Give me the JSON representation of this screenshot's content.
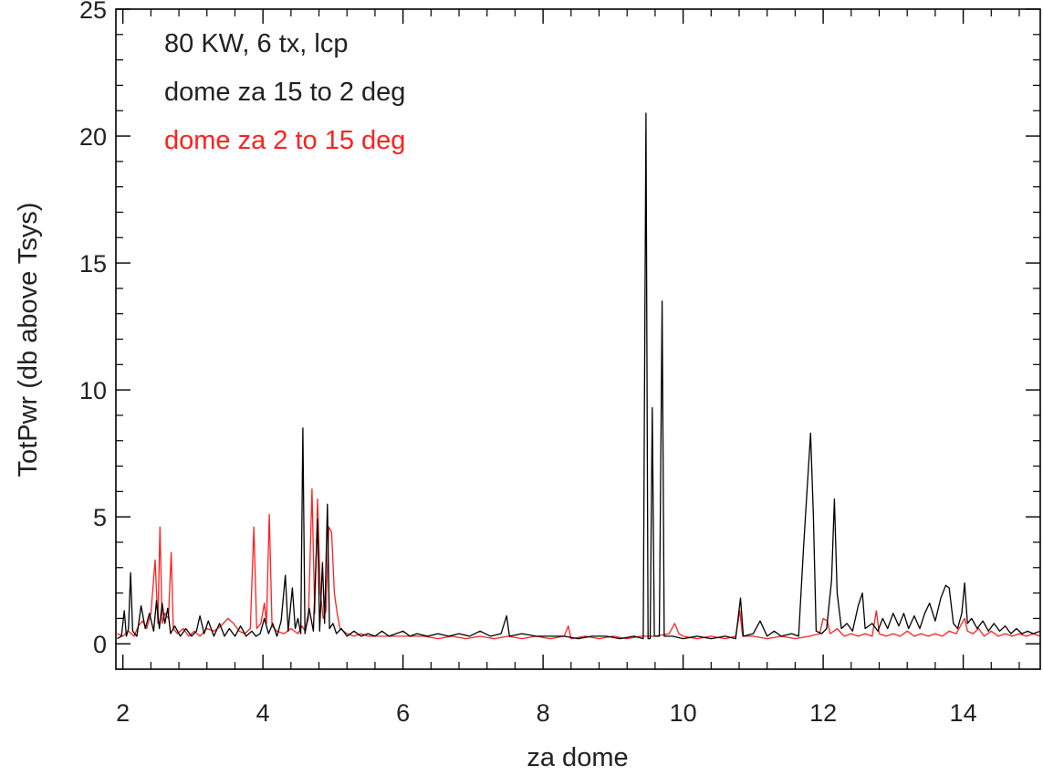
{
  "chart_data": {
    "type": "line",
    "title": "",
    "xlabel": "za dome",
    "ylabel": "TotPwr (db above Tsys)",
    "xlim": [
      1.9,
      15.1
    ],
    "ylim": [
      -1,
      25
    ],
    "xticks": [
      2,
      4,
      6,
      8,
      10,
      12,
      14
    ],
    "yticks": [
      0,
      5,
      10,
      15,
      20,
      25
    ],
    "x_minor_step": 0.4,
    "y_minor_step": 1,
    "grid": false,
    "legend_position": "top-left",
    "annotations": [
      {
        "text": "80 KW, 6 tx, lcp",
        "color": "#222222"
      },
      {
        "text": "dome za 15 to 2 deg",
        "color": "#222222"
      },
      {
        "text": "dome za 2  to 15 deg",
        "color": "#ff2020"
      }
    ],
    "series": [
      {
        "color": "#000000",
        "points": [
          [
            1.92,
            0.2
          ],
          [
            1.98,
            0.3
          ],
          [
            2.02,
            1.3
          ],
          [
            2.05,
            0.3
          ],
          [
            2.08,
            0.6
          ],
          [
            2.11,
            2.8
          ],
          [
            2.14,
            0.5
          ],
          [
            2.2,
            0.3
          ],
          [
            2.26,
            1.5
          ],
          [
            2.32,
            0.6
          ],
          [
            2.38,
            1.2
          ],
          [
            2.44,
            0.5
          ],
          [
            2.48,
            1.7
          ],
          [
            2.52,
            0.6
          ],
          [
            2.56,
            1.6
          ],
          [
            2.6,
            0.8
          ],
          [
            2.64,
            1.4
          ],
          [
            2.68,
            0.4
          ],
          [
            2.74,
            0.7
          ],
          [
            2.82,
            0.3
          ],
          [
            2.9,
            0.6
          ],
          [
            2.98,
            0.3
          ],
          [
            3.05,
            0.5
          ],
          [
            3.1,
            1.1
          ],
          [
            3.16,
            0.4
          ],
          [
            3.22,
            0.9
          ],
          [
            3.3,
            0.3
          ],
          [
            3.38,
            0.8
          ],
          [
            3.45,
            0.3
          ],
          [
            3.52,
            0.6
          ],
          [
            3.6,
            0.3
          ],
          [
            3.68,
            0.7
          ],
          [
            3.76,
            0.3
          ],
          [
            3.84,
            0.5
          ],
          [
            3.9,
            0.3
          ],
          [
            3.96,
            0.4
          ],
          [
            4.02,
            1.0
          ],
          [
            4.08,
            0.4
          ],
          [
            4.14,
            0.8
          ],
          [
            4.2,
            0.3
          ],
          [
            4.26,
            0.9
          ],
          [
            4.32,
            2.7
          ],
          [
            4.36,
            0.5
          ],
          [
            4.42,
            2.2
          ],
          [
            4.46,
            0.6
          ],
          [
            4.5,
            1.0
          ],
          [
            4.54,
            0.4
          ],
          [
            4.57,
            8.5
          ],
          [
            4.6,
            0.4
          ],
          [
            4.66,
            1.4
          ],
          [
            4.72,
            0.5
          ],
          [
            4.78,
            4.9
          ],
          [
            4.81,
            0.5
          ],
          [
            4.85,
            3.2
          ],
          [
            4.88,
            0.8
          ],
          [
            4.92,
            5.5
          ],
          [
            4.95,
            0.6
          ],
          [
            5.0,
            0.8
          ],
          [
            5.05,
            0.4
          ],
          [
            5.12,
            0.6
          ],
          [
            5.2,
            0.3
          ],
          [
            5.3,
            0.5
          ],
          [
            5.4,
            0.3
          ],
          [
            5.5,
            0.4
          ],
          [
            5.6,
            0.3
          ],
          [
            5.7,
            0.5
          ],
          [
            5.8,
            0.3
          ],
          [
            5.9,
            0.4
          ],
          [
            6.0,
            0.5
          ],
          [
            6.1,
            0.3
          ],
          [
            6.2,
            0.4
          ],
          [
            6.35,
            0.3
          ],
          [
            6.5,
            0.4
          ],
          [
            6.65,
            0.3
          ],
          [
            6.8,
            0.4
          ],
          [
            6.95,
            0.3
          ],
          [
            7.1,
            0.5
          ],
          [
            7.25,
            0.3
          ],
          [
            7.4,
            0.4
          ],
          [
            7.48,
            1.1
          ],
          [
            7.52,
            0.3
          ],
          [
            7.7,
            0.4
          ],
          [
            7.9,
            0.3
          ],
          [
            8.1,
            0.3
          ],
          [
            8.3,
            0.3
          ],
          [
            8.5,
            0.2
          ],
          [
            8.7,
            0.3
          ],
          [
            8.9,
            0.3
          ],
          [
            9.1,
            0.2
          ],
          [
            9.3,
            0.3
          ],
          [
            9.43,
            0.2
          ],
          [
            9.47,
            20.9
          ],
          [
            9.5,
            0.2
          ],
          [
            9.53,
            0.2
          ],
          [
            9.56,
            9.3
          ],
          [
            9.59,
            0.3
          ],
          [
            9.66,
            0.3
          ],
          [
            9.7,
            13.5
          ],
          [
            9.73,
            0.3
          ],
          [
            9.85,
            0.3
          ],
          [
            10.0,
            0.2
          ],
          [
            10.2,
            0.3
          ],
          [
            10.4,
            0.2
          ],
          [
            10.6,
            0.3
          ],
          [
            10.75,
            0.2
          ],
          [
            10.82,
            1.8
          ],
          [
            10.86,
            0.3
          ],
          [
            11.0,
            0.4
          ],
          [
            11.1,
            0.9
          ],
          [
            11.2,
            0.3
          ],
          [
            11.3,
            0.5
          ],
          [
            11.4,
            0.3
          ],
          [
            11.55,
            0.4
          ],
          [
            11.65,
            0.3
          ],
          [
            11.72,
            3.8
          ],
          [
            11.78,
            6.5
          ],
          [
            11.82,
            8.3
          ],
          [
            11.86,
            5.0
          ],
          [
            11.9,
            0.5
          ],
          [
            11.98,
            0.4
          ],
          [
            12.05,
            0.6
          ],
          [
            12.12,
            2.5
          ],
          [
            12.16,
            5.7
          ],
          [
            12.2,
            2.0
          ],
          [
            12.26,
            0.6
          ],
          [
            12.34,
            0.8
          ],
          [
            12.42,
            0.5
          ],
          [
            12.5,
            1.5
          ],
          [
            12.56,
            2.0
          ],
          [
            12.6,
            0.6
          ],
          [
            12.7,
            0.8
          ],
          [
            12.78,
            0.5
          ],
          [
            12.85,
            1.0
          ],
          [
            12.92,
            0.6
          ],
          [
            13.0,
            1.2
          ],
          [
            13.08,
            0.7
          ],
          [
            13.15,
            1.2
          ],
          [
            13.22,
            0.6
          ],
          [
            13.3,
            1.1
          ],
          [
            13.38,
            0.6
          ],
          [
            13.45,
            1.2
          ],
          [
            13.52,
            1.6
          ],
          [
            13.6,
            0.9
          ],
          [
            13.68,
            1.8
          ],
          [
            13.75,
            2.3
          ],
          [
            13.8,
            2.2
          ],
          [
            13.86,
            0.8
          ],
          [
            13.92,
            0.6
          ],
          [
            13.98,
            1.2
          ],
          [
            14.02,
            2.4
          ],
          [
            14.06,
            0.8
          ],
          [
            14.12,
            1.0
          ],
          [
            14.2,
            0.6
          ],
          [
            14.28,
            0.9
          ],
          [
            14.36,
            0.5
          ],
          [
            14.44,
            0.8
          ],
          [
            14.52,
            0.5
          ],
          [
            14.6,
            0.7
          ],
          [
            14.68,
            0.4
          ],
          [
            14.76,
            0.6
          ],
          [
            14.84,
            0.4
          ],
          [
            14.92,
            0.5
          ],
          [
            15.0,
            0.4
          ],
          [
            15.1,
            0.5
          ]
        ]
      },
      {
        "color": "#ff2020",
        "points": [
          [
            1.92,
            0.4
          ],
          [
            2.0,
            0.3
          ],
          [
            2.08,
            0.5
          ],
          [
            2.16,
            0.3
          ],
          [
            2.22,
            0.7
          ],
          [
            2.28,
            0.9
          ],
          [
            2.34,
            0.6
          ],
          [
            2.4,
            1.2
          ],
          [
            2.46,
            3.3
          ],
          [
            2.5,
            0.8
          ],
          [
            2.53,
            4.6
          ],
          [
            2.56,
            0.8
          ],
          [
            2.6,
            1.2
          ],
          [
            2.65,
            1.0
          ],
          [
            2.69,
            3.6
          ],
          [
            2.72,
            0.6
          ],
          [
            2.78,
            0.4
          ],
          [
            2.86,
            0.6
          ],
          [
            2.94,
            0.3
          ],
          [
            3.02,
            0.5
          ],
          [
            3.1,
            0.3
          ],
          [
            3.2,
            0.6
          ],
          [
            3.3,
            0.5
          ],
          [
            3.4,
            0.7
          ],
          [
            3.5,
            1.0
          ],
          [
            3.58,
            0.8
          ],
          [
            3.66,
            0.5
          ],
          [
            3.74,
            0.4
          ],
          [
            3.82,
            0.6
          ],
          [
            3.87,
            4.6
          ],
          [
            3.91,
            0.6
          ],
          [
            3.97,
            0.8
          ],
          [
            4.02,
            1.6
          ],
          [
            4.05,
            0.8
          ],
          [
            4.09,
            5.1
          ],
          [
            4.13,
            0.7
          ],
          [
            4.2,
            0.5
          ],
          [
            4.3,
            0.4
          ],
          [
            4.4,
            0.6
          ],
          [
            4.5,
            0.4
          ],
          [
            4.56,
            0.7
          ],
          [
            4.6,
            0.5
          ],
          [
            4.65,
            1.0
          ],
          [
            4.7,
            6.1
          ],
          [
            4.74,
            1.2
          ],
          [
            4.78,
            5.7
          ],
          [
            4.82,
            2.0
          ],
          [
            4.86,
            1.0
          ],
          [
            4.9,
            1.3
          ],
          [
            4.94,
            4.6
          ],
          [
            4.98,
            4.4
          ],
          [
            5.02,
            2.0
          ],
          [
            5.06,
            1.2
          ],
          [
            5.1,
            0.6
          ],
          [
            5.2,
            0.4
          ],
          [
            5.3,
            0.3
          ],
          [
            5.4,
            0.4
          ],
          [
            5.5,
            0.3
          ],
          [
            5.7,
            0.3
          ],
          [
            5.9,
            0.3
          ],
          [
            6.1,
            0.3
          ],
          [
            6.3,
            0.3
          ],
          [
            6.5,
            0.2
          ],
          [
            6.7,
            0.3
          ],
          [
            6.9,
            0.2
          ],
          [
            7.1,
            0.3
          ],
          [
            7.3,
            0.2
          ],
          [
            7.5,
            0.3
          ],
          [
            7.7,
            0.2
          ],
          [
            7.9,
            0.3
          ],
          [
            8.1,
            0.2
          ],
          [
            8.3,
            0.3
          ],
          [
            8.36,
            0.7
          ],
          [
            8.4,
            0.2
          ],
          [
            8.6,
            0.3
          ],
          [
            8.8,
            0.2
          ],
          [
            9.0,
            0.3
          ],
          [
            9.2,
            0.2
          ],
          [
            9.4,
            0.3
          ],
          [
            9.6,
            0.3
          ],
          [
            9.8,
            0.4
          ],
          [
            9.88,
            0.8
          ],
          [
            9.94,
            0.4
          ],
          [
            10.0,
            0.3
          ],
          [
            10.2,
            0.2
          ],
          [
            10.4,
            0.3
          ],
          [
            10.6,
            0.2
          ],
          [
            10.75,
            0.3
          ],
          [
            10.81,
            1.3
          ],
          [
            10.85,
            0.3
          ],
          [
            11.0,
            0.3
          ],
          [
            11.2,
            0.2
          ],
          [
            11.4,
            0.3
          ],
          [
            11.6,
            0.2
          ],
          [
            11.8,
            0.3
          ],
          [
            11.95,
            0.4
          ],
          [
            12.0,
            1.0
          ],
          [
            12.06,
            0.9
          ],
          [
            12.1,
            0.4
          ],
          [
            12.2,
            0.6
          ],
          [
            12.3,
            0.3
          ],
          [
            12.4,
            0.4
          ],
          [
            12.5,
            0.3
          ],
          [
            12.6,
            0.4
          ],
          [
            12.7,
            0.3
          ],
          [
            12.76,
            1.3
          ],
          [
            12.8,
            0.4
          ],
          [
            12.9,
            0.3
          ],
          [
            13.0,
            0.4
          ],
          [
            13.1,
            0.3
          ],
          [
            13.2,
            0.5
          ],
          [
            13.3,
            0.3
          ],
          [
            13.4,
            0.4
          ],
          [
            13.5,
            0.3
          ],
          [
            13.6,
            0.4
          ],
          [
            13.7,
            0.3
          ],
          [
            13.8,
            0.5
          ],
          [
            13.9,
            0.4
          ],
          [
            13.98,
            0.8
          ],
          [
            14.02,
            1.0
          ],
          [
            14.06,
            0.5
          ],
          [
            14.14,
            0.4
          ],
          [
            14.22,
            0.6
          ],
          [
            14.3,
            0.3
          ],
          [
            14.4,
            0.5
          ],
          [
            14.5,
            0.3
          ],
          [
            14.6,
            0.4
          ],
          [
            14.7,
            0.3
          ],
          [
            14.8,
            0.4
          ],
          [
            14.9,
            0.3
          ],
          [
            15.0,
            0.4
          ],
          [
            15.1,
            0.3
          ]
        ]
      }
    ]
  }
}
